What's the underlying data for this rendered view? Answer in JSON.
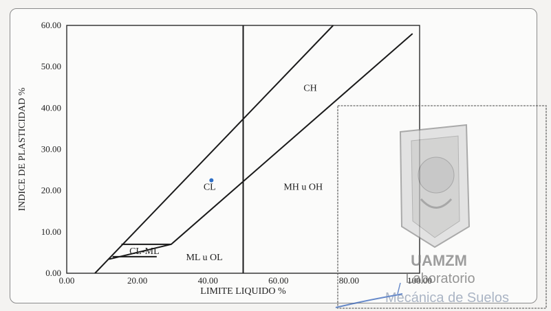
{
  "chart_data": {
    "type": "scatter",
    "title": "",
    "xlabel": "LIMITE LIQUIDO %",
    "ylabel": "INDICE DE PLASTICIDAD %",
    "xlim": [
      0,
      100
    ],
    "ylim": [
      0,
      60
    ],
    "x_ticks": [
      "0.00",
      "20.00",
      "40.00",
      "60.00",
      "80.00",
      "100.00"
    ],
    "y_ticks": [
      "0.00",
      "10.00",
      "20.00",
      "30.00",
      "40.00",
      "50.00",
      "60.00"
    ],
    "grid": false,
    "zone_labels": [
      {
        "text": "CH",
        "x": 69,
        "y": 45
      },
      {
        "text": "CL",
        "x": 40.5,
        "y": 21
      },
      {
        "text": "MH u OH",
        "x": 67,
        "y": 21
      },
      {
        "text": "CL-ML",
        "x": 22,
        "y": 5.5
      },
      {
        "text": "ML u OL",
        "x": 39,
        "y": 4
      }
    ],
    "lines": [
      {
        "name": "U-line",
        "points": [
          [
            8,
            0
          ],
          [
            75.5,
            60
          ]
        ]
      },
      {
        "name": "A-line",
        "points": [
          [
            12,
            3.4
          ],
          [
            29.6,
            7
          ],
          [
            98,
            58
          ]
        ]
      },
      {
        "name": "LL=50",
        "points": [
          [
            50,
            0
          ],
          [
            50,
            60
          ]
        ]
      },
      {
        "name": "PI=4",
        "points": [
          [
            13,
            4
          ],
          [
            25.5,
            4
          ]
        ]
      },
      {
        "name": "PI=7",
        "points": [
          [
            15.5,
            7
          ],
          [
            29.6,
            7
          ]
        ]
      }
    ],
    "points": [
      {
        "x": 41,
        "y": 22.5
      }
    ]
  },
  "stamp": {
    "line1": "UAMZM",
    "line2": "Laboratorio",
    "line3": "Mecánica de Suelos"
  }
}
